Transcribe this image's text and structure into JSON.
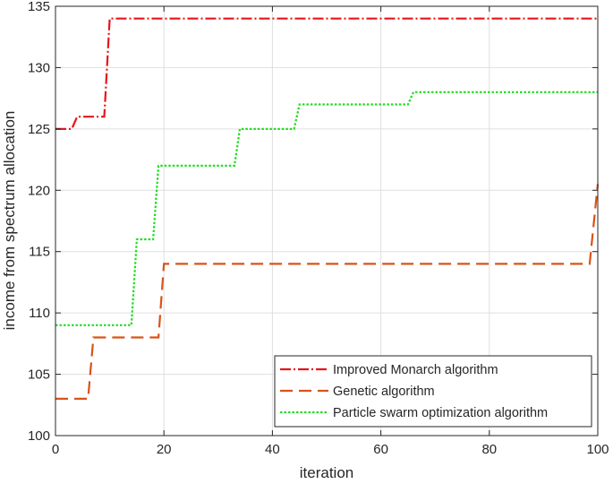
{
  "chart_data": {
    "type": "line",
    "title": "",
    "xlabel": "iteration",
    "ylabel": "income from spectrum allocation",
    "xlim": [
      0,
      100
    ],
    "ylim": [
      100,
      135
    ],
    "xticks": [
      0,
      20,
      40,
      60,
      80,
      100
    ],
    "yticks": [
      100,
      105,
      110,
      115,
      120,
      125,
      130,
      135
    ],
    "grid": true,
    "legend_position": "bottom-right",
    "series": [
      {
        "name": "Improved Monarch algorithm",
        "color": "#e8141c",
        "style": "dashdot",
        "x": [
          0,
          3,
          4,
          9,
          10,
          100
        ],
        "y": [
          125,
          125,
          126,
          126,
          134,
          134
        ]
      },
      {
        "name": "Genetic algorithm",
        "color": "#d95319",
        "style": "dashed",
        "x": [
          0,
          6,
          7,
          19,
          20,
          98.5,
          100
        ],
        "y": [
          103,
          103,
          108,
          108,
          114,
          114,
          120.5
        ]
      },
      {
        "name": "Particle swarm optimization algorithm",
        "color": "#22dd22",
        "style": "dotted",
        "x": [
          0,
          14,
          15,
          18,
          19,
          33,
          34,
          44,
          45,
          65,
          66,
          100
        ],
        "y": [
          109,
          109,
          116,
          116,
          122,
          122,
          125,
          125,
          127,
          127,
          128,
          128
        ]
      }
    ]
  }
}
